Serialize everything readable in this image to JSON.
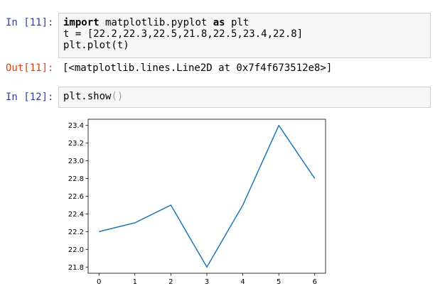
{
  "cells": [
    {
      "in_prompt": "In [11]:",
      "code": {
        "line1_kw1": "import",
        "line1_mid": " matplotlib.pyplot ",
        "line1_kw2": "as",
        "line1_end": " plt",
        "line2": "t = [22.2,22.3,22.5,21.8,22.5,23.4,22.8]",
        "line3": "plt.plot(t)"
      },
      "out_prompt": "Out[11]:",
      "output": "[<matplotlib.lines.Line2D at 0x7f4f673512e8>]"
    },
    {
      "in_prompt": "In [12]:",
      "code": {
        "fn": "plt.show",
        "paren_open": "(",
        "paren_close": ")"
      }
    }
  ],
  "chart_data": {
    "type": "line",
    "x": [
      0,
      1,
      2,
      3,
      4,
      5,
      6
    ],
    "series": [
      {
        "values": [
          22.2,
          22.3,
          22.5,
          21.8,
          22.5,
          23.4,
          22.8
        ],
        "color": "#1f77b4"
      }
    ],
    "x_ticks": [
      0,
      1,
      2,
      3,
      4,
      5,
      6
    ],
    "y_ticks": [
      21.8,
      22.0,
      22.2,
      22.4,
      22.6,
      22.8,
      23.0,
      23.2,
      23.4
    ],
    "y_tick_labels": [
      "21.8",
      "22.0",
      "22.2",
      "22.4",
      "22.6",
      "22.8",
      "23.0",
      "23.2",
      "23.4"
    ],
    "xlim": [
      -0.3,
      6.3
    ],
    "ylim": [
      21.73,
      23.47
    ],
    "grid": false,
    "title": "",
    "xlabel": "",
    "ylabel": ""
  }
}
